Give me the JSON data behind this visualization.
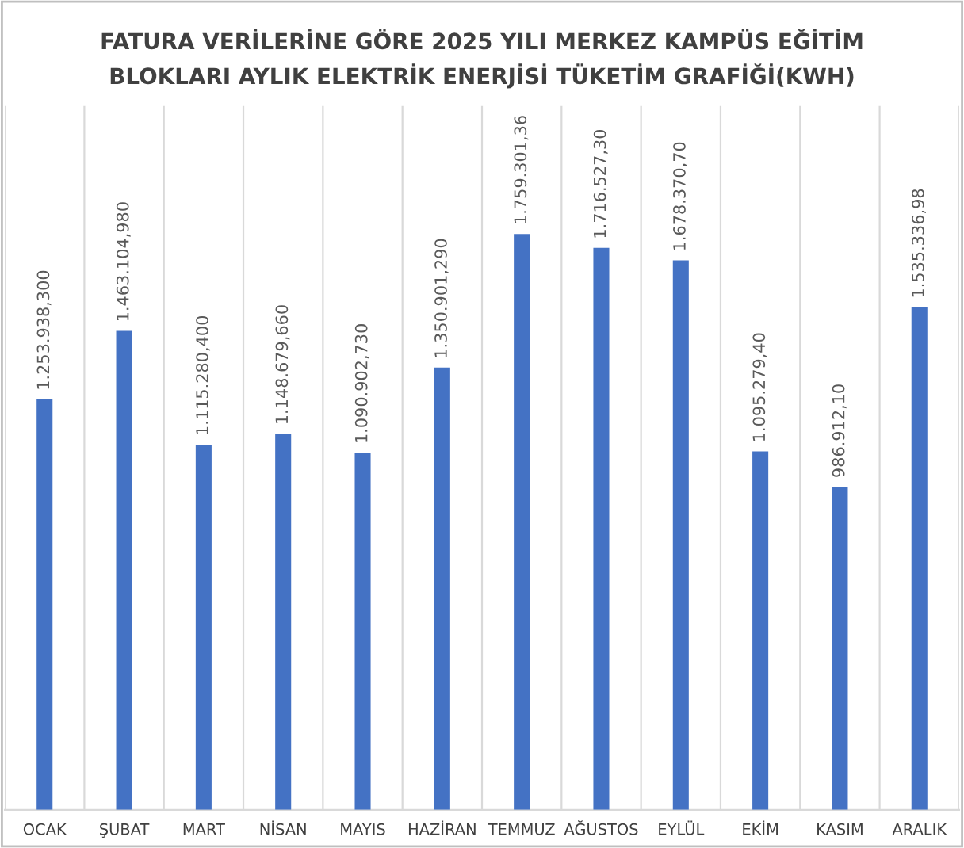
{
  "chart_data": {
    "type": "bar",
    "title": "FATURA VERİLERİNE GÖRE 2025 YILI MERKEZ KAMPÜS EĞİTİM\nBLOKLARI AYLIK ELEKTRİK ENERJİSİ TÜKETİM GRAFİĞİ(KWH)",
    "categories": [
      "OCAK",
      "ŞUBAT",
      "MART",
      "NİSAN",
      "MAYIS",
      "HAZİRAN",
      "TEMMUZ",
      "AĞUSTOS",
      "EYLÜL",
      "EKİM",
      "KASIM",
      "ARALIK"
    ],
    "values": [
      1253938.3,
      1463104.98,
      1115280.4,
      1148679.66,
      1090902.73,
      1350901.29,
      1759301.36,
      1716527.3,
      1678370.7,
      1095279.4,
      986912.1,
      1535336.98
    ],
    "value_labels": [
      "1.253.938,300",
      "1.463.104,980",
      "1.115.280,400",
      "1.148.679,660",
      "1.090.902,730",
      "1.350.901,290",
      "1.759.301,36",
      "1.716.527,30",
      "1.678.370,70",
      "1.095.279,40",
      "986.912,10",
      "1.535.336,98"
    ],
    "color": "#4472c4",
    "ylim": [
      0,
      2150000
    ],
    "grid": "x",
    "tick_labels": "x"
  }
}
